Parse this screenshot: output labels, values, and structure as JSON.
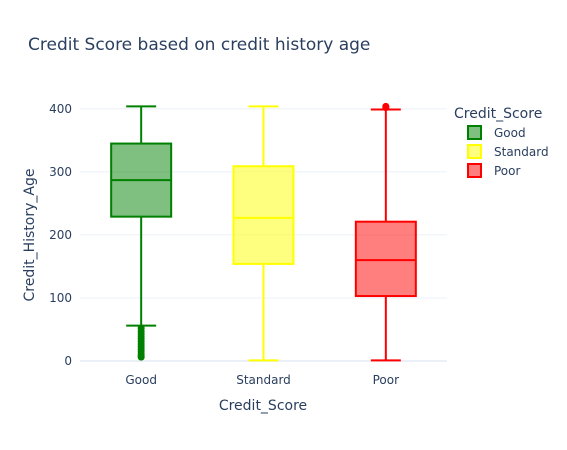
{
  "chart_data": {
    "type": "box",
    "title": "Credit Score based on credit history age",
    "xlabel": "Credit_Score",
    "ylabel": "Credit_History_Age",
    "categories": [
      "Good",
      "Standard",
      "Poor"
    ],
    "ylim": [
      -8,
      430
    ],
    "yticks": [
      0,
      100,
      200,
      300,
      400
    ],
    "grid": true,
    "legend": {
      "title": "Credit_Score",
      "position": "top-right"
    },
    "series": [
      {
        "name": "Good",
        "color": "#008000",
        "min": 56,
        "q1": 229,
        "median": 287,
        "q3": 345,
        "max": 404,
        "outliers": [
          52,
          47,
          43,
          39,
          35,
          31,
          27,
          23,
          19,
          15,
          11,
          8,
          6
        ]
      },
      {
        "name": "Standard",
        "color": "#ffff00",
        "min": 1,
        "q1": 154,
        "median": 227,
        "q3": 309,
        "max": 404,
        "outliers": []
      },
      {
        "name": "Poor",
        "color": "#ff0000",
        "min": 1,
        "q1": 103,
        "median": 160,
        "q3": 221,
        "max": 399,
        "outliers": [
          402,
          404
        ]
      }
    ]
  }
}
